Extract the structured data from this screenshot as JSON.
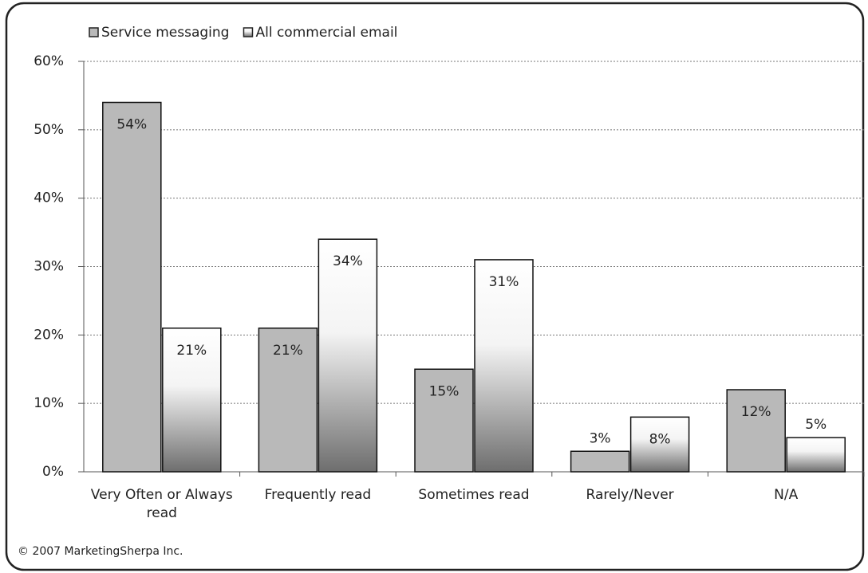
{
  "chart_data": {
    "type": "bar",
    "categories": [
      "Very Often or Always read",
      "Frequently read",
      "Sometimes read",
      "Rarely/Never",
      "N/A"
    ],
    "series": [
      {
        "name": "Service messaging",
        "color": "#b9b9b9",
        "values": [
          54,
          21,
          15,
          3,
          12
        ],
        "value_labels": [
          "54%",
          "21%",
          "15%",
          "3%",
          "12%"
        ]
      },
      {
        "name": "All commercial email",
        "color": "#7a7a7a",
        "values": [
          21,
          34,
          31,
          8,
          5
        ],
        "value_labels": [
          "21%",
          "34%",
          "31%",
          "8%",
          "5%"
        ]
      }
    ],
    "ylim": [
      0,
      60
    ],
    "yticks": [
      {
        "value": 0,
        "label": "0%"
      },
      {
        "value": 10,
        "label": "10%"
      },
      {
        "value": 20,
        "label": "20%"
      },
      {
        "value": 30,
        "label": "30%"
      },
      {
        "value": 40,
        "label": "40%"
      },
      {
        "value": 50,
        "label": "50%"
      },
      {
        "value": 60,
        "label": "60%"
      }
    ],
    "grid": true,
    "legend": "top",
    "footnote": "© 2007 MarketingSherpa Inc."
  }
}
